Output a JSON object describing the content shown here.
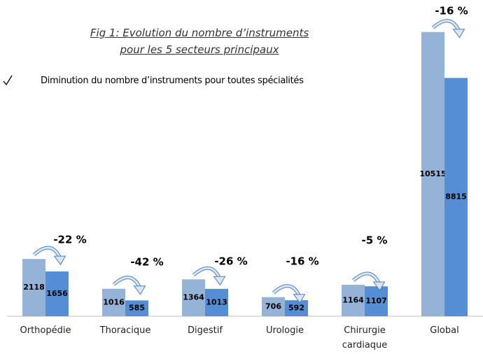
{
  "chart_data": {
    "type": "bar",
    "title": "Fig 1: Evolution du nombre d’instruments pour les 5 secteurs principaux",
    "subtitle": "Diminution du nombre d’instruments pour toutes  spécialités",
    "categories": [
      "Orthopédie",
      "Thoracique",
      "Digestif",
      "Urologie",
      "Chirurgie cardiaque",
      "Global"
    ],
    "series": [
      {
        "color": "#95b3d7",
        "values": [
          2118,
          1016,
          1364,
          706,
          1164,
          10515
        ]
      },
      {
        "color": "#558ed5",
        "values": [
          1656,
          585,
          1013,
          592,
          1107,
          8815
        ]
      }
    ],
    "annotations": [
      "-22 %",
      "-42 %",
      "-26 %",
      "-16 %",
      "-5 %",
      "-16 %"
    ],
    "ylim": [
      0,
      11000
    ]
  }
}
